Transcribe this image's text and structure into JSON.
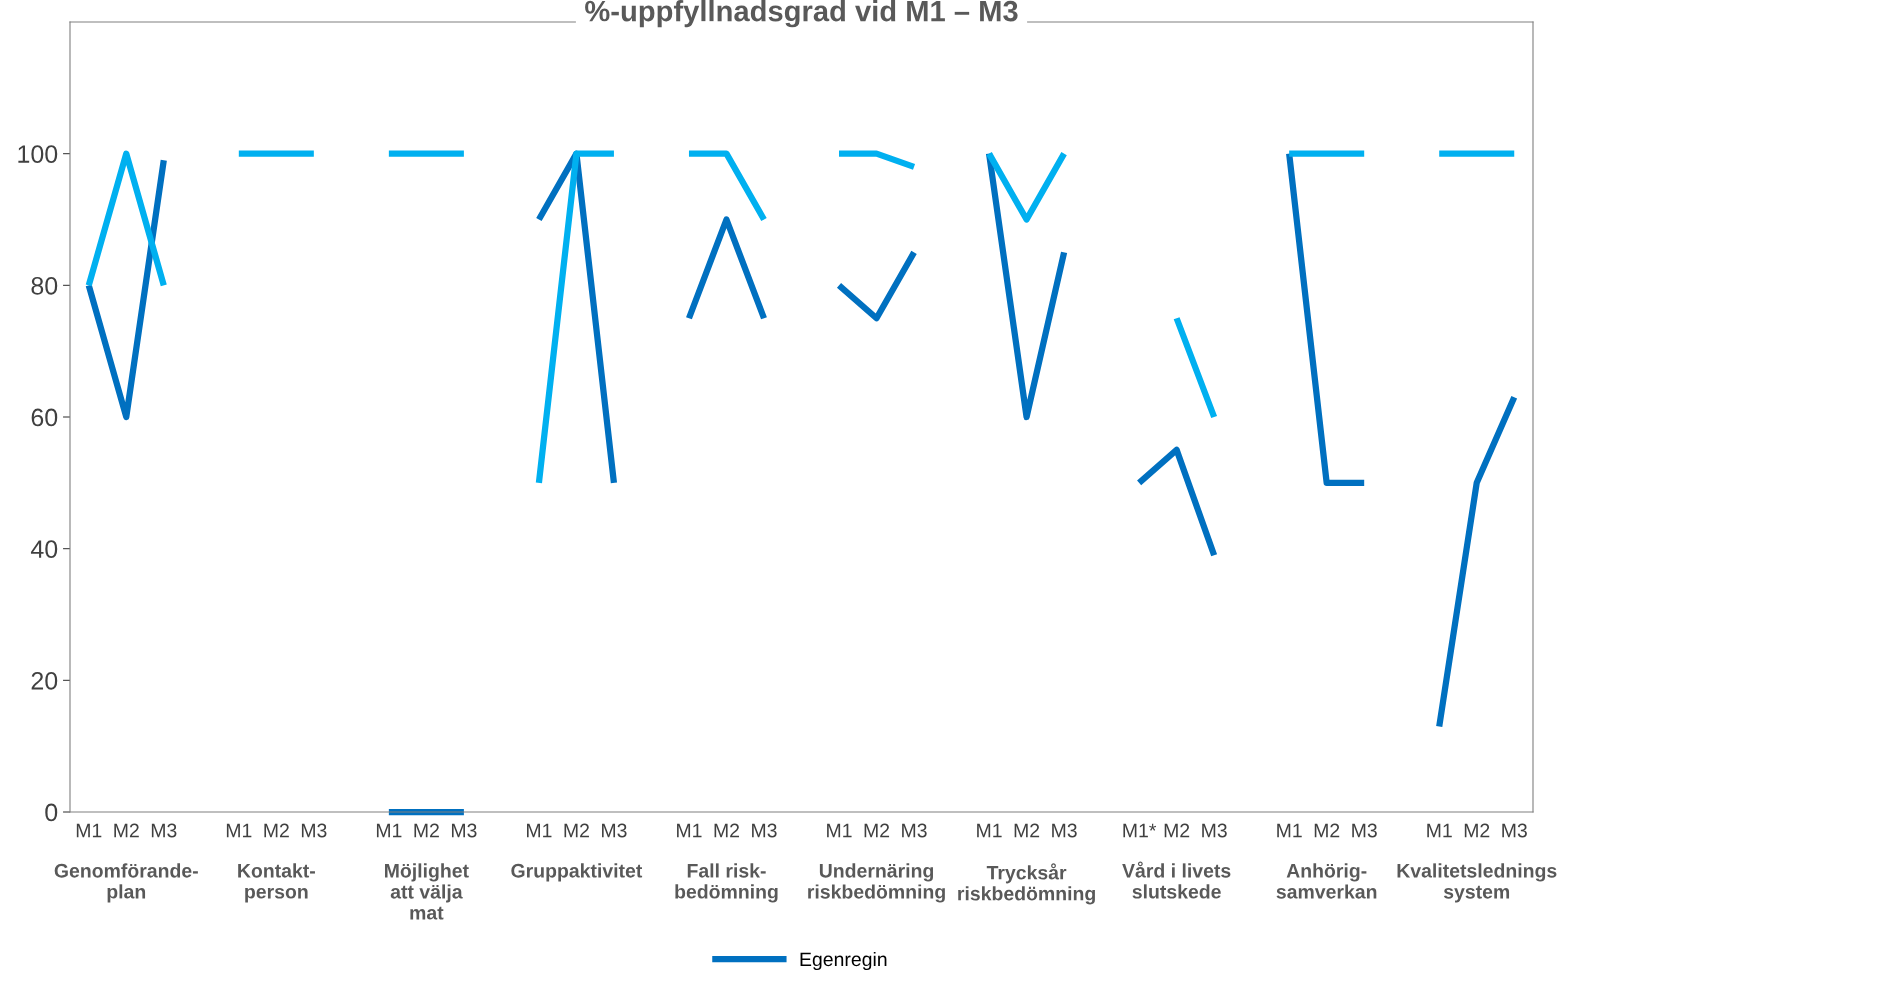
{
  "chart_data": {
    "type": "line",
    "title": "%-uppfyllnadsgrad vid M1 – M3",
    "categories": [
      "M1",
      "M2",
      "M3",
      null,
      "M1",
      "M2",
      "M3",
      null,
      "M1",
      "M2",
      "M3",
      null,
      "M1",
      "M2",
      "M3",
      null,
      "M1",
      "M2",
      "M3",
      null,
      "M1",
      "M2",
      "M3",
      null,
      "M1",
      "M2",
      "M3",
      null,
      "M1*",
      "M2",
      "M3",
      null,
      "M1",
      "M2",
      "M3",
      null,
      "M1",
      "M2",
      "M3"
    ],
    "series": [
      {
        "name": "Egenregin",
        "color": "#0070c0",
        "values": [
          80,
          60,
          99,
          null,
          null,
          null,
          null,
          null,
          0,
          0,
          0,
          null,
          90,
          100,
          50,
          null,
          75,
          90,
          75,
          null,
          80,
          75,
          85,
          null,
          100,
          60,
          85,
          null,
          50,
          55,
          39,
          null,
          100,
          50,
          50,
          null,
          13,
          50,
          63
        ]
      },
      {
        "color": "#00b0f0",
        "values": [
          80,
          100,
          80,
          null,
          100,
          100,
          100,
          null,
          100,
          100,
          100,
          null,
          50,
          100,
          100,
          null,
          100,
          100,
          90,
          null,
          100,
          100,
          98,
          null,
          100,
          90,
          100,
          null,
          null,
          75,
          60,
          null,
          100,
          100,
          100,
          null,
          100,
          100,
          100
        ]
      }
    ],
    "annotations": [
      "Genomförande-\nplan",
      "Kontakt-\nperson",
      "Möjlighet\natt välja\nmat",
      "Gruppaktivitet",
      "Fall risk-\nbedömning",
      "Undernäring\nriskbedömning",
      "Trycksår\nriskbedömning",
      "Vård i livets\nslutskede",
      "Anhörig-\nsamverkan",
      "Kvalitetslednings\nsystem"
    ],
    "ylim": [
      0,
      120
    ],
    "yticks": [
      0,
      20,
      40,
      60,
      80,
      100
    ],
    "grid": false,
    "legend": "bottom",
    "marker": "none",
    "line_style": "solid"
  }
}
